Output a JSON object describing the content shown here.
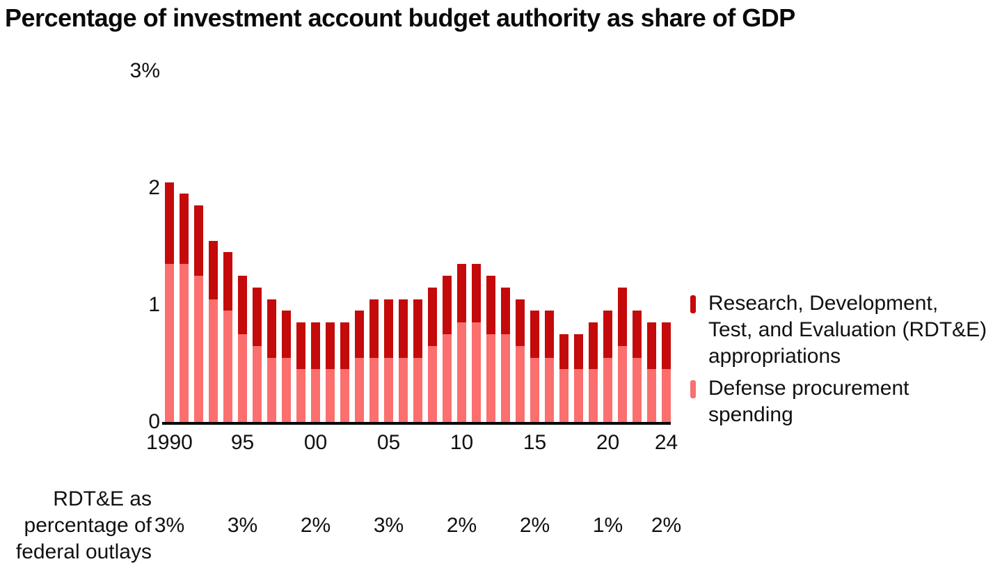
{
  "title": "Percentage of investment account budget authority as share of GDP",
  "colors": {
    "rdte": "#C40A0A",
    "procurement": "#FB6F6F",
    "axis": "#000000",
    "text": "#111111"
  },
  "chart_data": {
    "type": "bar",
    "stacked": true,
    "grid": false,
    "legend_position": "right",
    "title": "Percentage of investment account budget authority as share of GDP",
    "xlabel": "",
    "ylabel": "",
    "ylim": [
      0,
      3
    ],
    "x": [
      1990,
      1991,
      1992,
      1993,
      1994,
      1995,
      1996,
      1997,
      1998,
      1999,
      2000,
      2001,
      2002,
      2003,
      2004,
      2005,
      2006,
      2007,
      2008,
      2009,
      2010,
      2011,
      2012,
      2013,
      2014,
      2015,
      2016,
      2017,
      2018,
      2019,
      2020,
      2021,
      2022,
      2023,
      2024
    ],
    "series": [
      {
        "name": "Defense procurement spending",
        "color": "#FB6F6F",
        "values": [
          1.35,
          1.35,
          1.25,
          1.05,
          0.95,
          0.75,
          0.65,
          0.55,
          0.55,
          0.45,
          0.45,
          0.45,
          0.45,
          0.55,
          0.55,
          0.55,
          0.55,
          0.55,
          0.65,
          0.75,
          0.85,
          0.85,
          0.75,
          0.75,
          0.65,
          0.55,
          0.55,
          0.45,
          0.45,
          0.45,
          0.55,
          0.65,
          0.55,
          0.45,
          0.45
        ]
      },
      {
        "name": "Research, Development, Test, and Evaluation (RDT&E) appropriations",
        "color": "#C40A0A",
        "values": [
          0.7,
          0.6,
          0.6,
          0.5,
          0.5,
          0.5,
          0.5,
          0.5,
          0.4,
          0.4,
          0.4,
          0.4,
          0.4,
          0.4,
          0.5,
          0.5,
          0.5,
          0.5,
          0.5,
          0.5,
          0.5,
          0.5,
          0.5,
          0.4,
          0.4,
          0.4,
          0.4,
          0.3,
          0.3,
          0.4,
          0.4,
          0.5,
          0.4,
          0.4,
          0.4
        ]
      }
    ],
    "yticks": [
      {
        "value": 0,
        "label": "0"
      },
      {
        "value": 1,
        "label": "1"
      },
      {
        "value": 2,
        "label": "2"
      },
      {
        "value": 3,
        "label": "3%"
      }
    ],
    "xticks": [
      {
        "year": 1990,
        "label": "1990"
      },
      {
        "year": 1995,
        "label": "95"
      },
      {
        "year": 2000,
        "label": "00"
      },
      {
        "year": 2005,
        "label": "05"
      },
      {
        "year": 2010,
        "label": "10"
      },
      {
        "year": 2015,
        "label": "15"
      },
      {
        "year": 2020,
        "label": "20"
      },
      {
        "year": 2024,
        "label": "24"
      }
    ]
  },
  "legend": {
    "entries": [
      {
        "series": "rdte",
        "color": "#C40A0A",
        "lines": [
          "Research, Development,",
          "Test, and Evaluation (RDT&E)",
          "appropriations"
        ]
      },
      {
        "series": "procurement",
        "color": "#FB6F6F",
        "lines": [
          "Defense procurement",
          "spending"
        ]
      }
    ]
  },
  "footer": {
    "label_lines": [
      "RDT&E as",
      "percentage of",
      "federal outlays"
    ],
    "values": [
      {
        "year": 1990,
        "text": "3%"
      },
      {
        "year": 1995,
        "text": "3%"
      },
      {
        "year": 2000,
        "text": "2%"
      },
      {
        "year": 2005,
        "text": "3%"
      },
      {
        "year": 2010,
        "text": "2%"
      },
      {
        "year": 2015,
        "text": "2%"
      },
      {
        "year": 2020,
        "text": "1%"
      },
      {
        "year": 2024,
        "text": "2%"
      }
    ]
  }
}
